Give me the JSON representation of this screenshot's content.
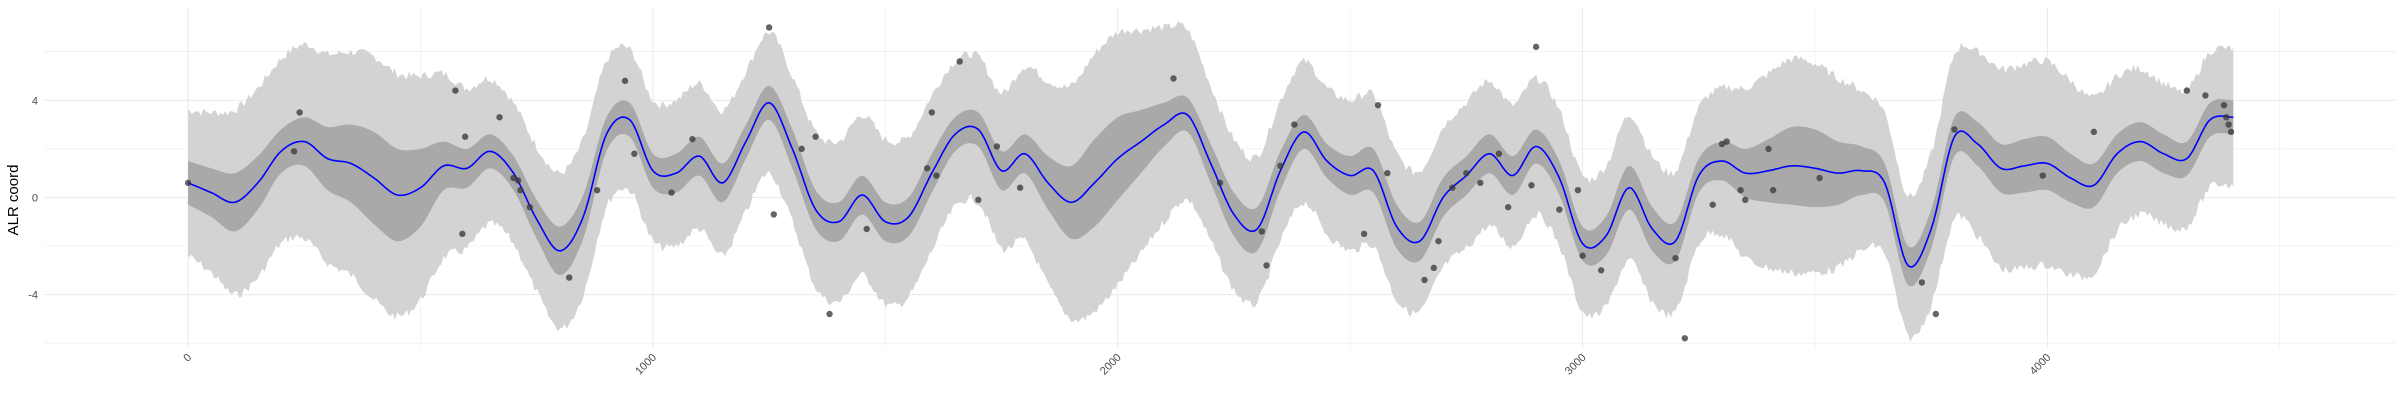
{
  "chart_data": {
    "type": "line",
    "title": "",
    "xlabel": "",
    "ylabel": "ALR coord",
    "xlim": [
      -310,
      4750
    ],
    "ylim": [
      -6.2,
      7.8
    ],
    "x_ticks": [
      0,
      1000,
      2000,
      3000,
      4000
    ],
    "x_tick_labels": [
      "0",
      "1000",
      "2000",
      "3000",
      "4000"
    ],
    "y_ticks": [
      -4,
      0,
      4
    ],
    "y_tick_labels": [
      "-4",
      "0",
      "4"
    ],
    "x_tick_label_angle": -45,
    "grid": true,
    "legend": "none",
    "colors": {
      "background": "#ffffff",
      "grid": "#ebebeb",
      "outer_band": "#d3d3d3",
      "inner_band": "#a9a9a9",
      "mean_line": "#0000ff",
      "points": "#3a3a3a"
    },
    "series": [
      {
        "kind": "mean_line",
        "x": [
          0,
          50,
          100,
          150,
          200,
          250,
          300,
          350,
          400,
          450,
          500,
          550,
          600,
          650,
          700,
          750,
          800,
          850,
          900,
          950,
          1000,
          1050,
          1100,
          1150,
          1200,
          1250,
          1300,
          1350,
          1400,
          1450,
          1500,
          1550,
          1600,
          1650,
          1700,
          1750,
          1800,
          1850,
          1900,
          1950,
          2000,
          2050,
          2100,
          2150,
          2200,
          2250,
          2300,
          2350,
          2400,
          2450,
          2500,
          2550,
          2600,
          2650,
          2700,
          2750,
          2800,
          2850,
          2900,
          2950,
          3000,
          3050,
          3100,
          3150,
          3200,
          3250,
          3300,
          3350,
          3400,
          3450,
          3500,
          3550,
          3600,
          3650,
          3700,
          3750,
          3800,
          3850,
          3900,
          3950,
          4000,
          4050,
          4100,
          4150,
          4200,
          4250,
          4300,
          4350,
          4400
        ],
        "y": [
          0.6,
          0.2,
          -0.2,
          0.6,
          1.9,
          2.3,
          1.6,
          1.4,
          0.8,
          0.1,
          0.4,
          1.3,
          1.2,
          1.9,
          1.0,
          -0.9,
          -2.2,
          -0.8,
          2.6,
          3.2,
          1.1,
          1.0,
          1.7,
          0.6,
          2.3,
          3.9,
          2.0,
          -0.5,
          -1.0,
          0.1,
          -1.0,
          -0.8,
          1.0,
          2.6,
          2.8,
          1.1,
          1.8,
          0.6,
          -0.2,
          0.6,
          1.6,
          2.3,
          3.0,
          3.4,
          1.4,
          -0.7,
          -1.3,
          1.1,
          2.7,
          1.5,
          0.9,
          1.1,
          -1.2,
          -1.8,
          0.0,
          0.9,
          1.8,
          0.9,
          2.1,
          0.8,
          -1.9,
          -1.6,
          0.4,
          -1.3,
          -1.8,
          0.9,
          1.5,
          1.0,
          1.1,
          1.3,
          1.2,
          1.0,
          1.1,
          0.6,
          -2.8,
          -1.3,
          2.5,
          2.2,
          1.2,
          1.3,
          1.4,
          0.8,
          0.5,
          1.8,
          2.3,
          1.8,
          1.6,
          3.2,
          3.3
        ]
      },
      {
        "kind": "inner_band_halfwidth",
        "x": [
          0,
          50,
          100,
          150,
          200,
          250,
          300,
          350,
          400,
          450,
          500,
          550,
          600,
          650,
          700,
          750,
          800,
          850,
          900,
          950,
          1000,
          1050,
          1100,
          1150,
          1200,
          1250,
          1300,
          1350,
          1400,
          1450,
          1500,
          1550,
          1600,
          1650,
          1700,
          1750,
          1800,
          1850,
          1900,
          1950,
          2000,
          2050,
          2100,
          2150,
          2200,
          2250,
          2300,
          2350,
          2400,
          2450,
          2500,
          2550,
          2600,
          2650,
          2700,
          2750,
          2800,
          2850,
          2900,
          2950,
          3000,
          3050,
          3100,
          3150,
          3200,
          3250,
          3300,
          3350,
          3400,
          3450,
          3500,
          3550,
          3600,
          3650,
          3700,
          3750,
          3800,
          3850,
          3900,
          3950,
          4000,
          4050,
          4100,
          4150,
          4200,
          4250,
          4300,
          4350,
          4400
        ],
        "y": [
          0.9,
          1.0,
          1.2,
          1.1,
          0.9,
          1.0,
          1.3,
          1.6,
          1.9,
          1.9,
          1.6,
          1.0,
          0.8,
          0.7,
          0.7,
          0.8,
          1.0,
          0.9,
          0.7,
          0.7,
          0.7,
          0.8,
          0.8,
          0.8,
          0.7,
          0.7,
          0.8,
          0.8,
          0.8,
          0.8,
          0.8,
          0.8,
          0.8,
          0.7,
          0.7,
          0.8,
          0.8,
          1.1,
          1.5,
          1.8,
          1.7,
          1.3,
          0.9,
          0.7,
          0.8,
          0.9,
          0.9,
          0.8,
          0.7,
          0.7,
          0.8,
          0.9,
          0.9,
          0.8,
          0.8,
          0.8,
          0.8,
          0.8,
          0.7,
          0.7,
          0.7,
          0.8,
          0.9,
          0.9,
          0.8,
          0.7,
          0.8,
          1.0,
          1.3,
          1.6,
          1.6,
          1.3,
          1.0,
          0.8,
          0.8,
          0.8,
          0.8,
          0.9,
          1.0,
          1.1,
          1.1,
          1.0,
          0.9,
          0.8,
          0.8,
          0.8,
          0.7,
          0.7,
          0.7
        ]
      },
      {
        "kind": "outer_band_halfwidth",
        "x": [
          0,
          50,
          100,
          150,
          200,
          250,
          300,
          350,
          400,
          450,
          500,
          550,
          600,
          650,
          700,
          750,
          800,
          850,
          900,
          950,
          1000,
          1050,
          1100,
          1150,
          1200,
          1250,
          1300,
          1350,
          1400,
          1450,
          1500,
          1550,
          1600,
          1650,
          1700,
          1750,
          1800,
          1850,
          1900,
          1950,
          2000,
          2050,
          2100,
          2150,
          2200,
          2250,
          2300,
          2350,
          2400,
          2450,
          2500,
          2550,
          2600,
          2650,
          2700,
          2750,
          2800,
          2850,
          2900,
          2950,
          3000,
          3050,
          3100,
          3150,
          3200,
          3250,
          3300,
          3350,
          3400,
          3450,
          3500,
          3550,
          3600,
          3650,
          3700,
          3750,
          3800,
          3850,
          3900,
          3950,
          4000,
          4050,
          4100,
          4150,
          4200,
          4250,
          4300,
          4350,
          4400
        ],
        "y": [
          3.0,
          3.3,
          3.8,
          3.9,
          3.8,
          4.0,
          4.3,
          4.6,
          5.0,
          5.0,
          4.6,
          3.8,
          3.3,
          3.0,
          2.9,
          3.0,
          3.2,
          3.2,
          3.0,
          2.9,
          2.9,
          3.0,
          3.0,
          3.0,
          2.9,
          2.9,
          3.0,
          3.2,
          3.3,
          3.3,
          3.4,
          3.3,
          3.2,
          3.0,
          3.0,
          3.2,
          3.6,
          4.2,
          4.8,
          5.3,
          5.2,
          4.6,
          4.0,
          3.5,
          3.2,
          3.1,
          3.0,
          2.9,
          2.9,
          3.0,
          3.1,
          3.1,
          3.0,
          2.9,
          2.9,
          3.0,
          3.0,
          2.9,
          2.8,
          2.8,
          2.8,
          2.9,
          3.0,
          3.0,
          2.9,
          2.8,
          3.0,
          3.5,
          4.0,
          4.4,
          4.3,
          3.9,
          3.3,
          2.9,
          2.9,
          3.1,
          3.4,
          3.8,
          4.1,
          4.2,
          4.2,
          4.0,
          3.6,
          3.2,
          3.0,
          2.9,
          2.8,
          2.8,
          2.8
        ]
      },
      {
        "kind": "observations",
        "x": [
          0,
          240,
          228,
          575,
          590,
          670,
          596,
          700,
          710,
          715,
          735,
          820,
          880,
          940,
          960,
          1040,
          1085,
          1250,
          1260,
          1320,
          1350,
          1380,
          1460,
          1590,
          1600,
          1610,
          1660,
          1700,
          1740,
          1790,
          2120,
          2220,
          2310,
          2320,
          2350,
          2380,
          2530,
          2560,
          2580,
          2660,
          2680,
          2690,
          2720,
          2750,
          2780,
          2820,
          2840,
          2890,
          2900,
          2950,
          2990,
          3000,
          3040,
          3200,
          3220,
          3280,
          3300,
          3310,
          3340,
          3350,
          3400,
          3410,
          3510,
          3730,
          3760,
          3800,
          3990,
          4100,
          4300,
          4340,
          4380,
          4385,
          4390,
          4395
        ],
        "y": [
          0.6,
          3.5,
          1.9,
          4.4,
          -1.5,
          3.3,
          2.5,
          0.8,
          0.7,
          0.3,
          -0.4,
          -3.3,
          0.3,
          4.8,
          1.8,
          0.2,
          2.4,
          7.0,
          -0.7,
          2.0,
          2.5,
          -4.8,
          -1.3,
          1.2,
          3.5,
          0.9,
          5.6,
          -0.1,
          2.1,
          0.4,
          4.9,
          0.6,
          -1.4,
          -2.8,
          1.3,
          3.0,
          -1.5,
          3.8,
          1.0,
          -3.4,
          -2.9,
          -1.8,
          0.4,
          1.0,
          0.6,
          1.8,
          -0.4,
          0.5,
          6.2,
          -0.5,
          0.3,
          -2.4,
          -3.0,
          -2.5,
          -5.8,
          -0.3,
          2.2,
          2.3,
          0.3,
          -0.1,
          2.0,
          0.3,
          0.8,
          -3.5,
          -4.8,
          2.8,
          0.9,
          2.7,
          4.4,
          4.2,
          3.8,
          3.3,
          3.0,
          2.7
        ]
      }
    ]
  }
}
